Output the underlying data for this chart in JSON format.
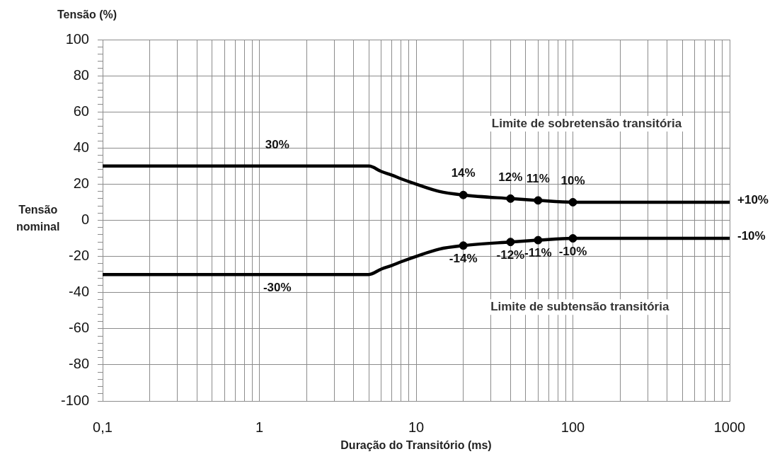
{
  "chart_data": {
    "type": "line",
    "xlabel": "Duração do Transitório (ms)",
    "ylabel": "Tensão (%)",
    "log": "x",
    "grid": true,
    "xlim": [
      0.1,
      1000
    ],
    "xticks": [
      {
        "value": 0.1,
        "label": "0,1"
      },
      {
        "value": 0.2,
        "label": null
      },
      {
        "value": 0.3,
        "label": null
      },
      {
        "value": 0.4,
        "label": null
      },
      {
        "value": 0.5,
        "label": null
      },
      {
        "value": 0.6,
        "label": null
      },
      {
        "value": 0.7,
        "label": null
      },
      {
        "value": 0.8,
        "label": null
      },
      {
        "value": 0.9,
        "label": null
      },
      1,
      {
        "value": 2,
        "label": null
      },
      {
        "value": 3,
        "label": null
      },
      {
        "value": 4,
        "label": null
      },
      {
        "value": 5,
        "label": null
      },
      {
        "value": 6,
        "label": null
      },
      {
        "value": 7,
        "label": null
      },
      {
        "value": 8,
        "label": null
      },
      {
        "value": 9,
        "label": null
      },
      10,
      {
        "value": 20,
        "label": null
      },
      {
        "value": 30,
        "label": null
      },
      {
        "value": 40,
        "label": null
      },
      {
        "value": 50,
        "label": null
      },
      {
        "value": 60,
        "label": null
      },
      {
        "value": 70,
        "label": null
      },
      {
        "value": 80,
        "label": null
      },
      {
        "value": 90,
        "label": null
      },
      100,
      {
        "value": 200,
        "label": null
      },
      {
        "value": 300,
        "label": null
      },
      {
        "value": 400,
        "label": null
      },
      {
        "value": 500,
        "label": null
      },
      {
        "value": 600,
        "label": null
      },
      {
        "value": 700,
        "label": null
      },
      {
        "value": 800,
        "label": null
      },
      {
        "value": 900,
        "label": null
      },
      1000
    ],
    "ylim": [
      -100,
      100
    ],
    "yticks": [
      -100,
      {
        "value": -96,
        "label": null
      },
      {
        "value": -92,
        "label": null
      },
      {
        "value": -88,
        "label": null
      },
      {
        "value": -84,
        "label": null
      },
      -80,
      {
        "value": -76,
        "label": null
      },
      {
        "value": -72,
        "label": null
      },
      {
        "value": -68,
        "label": null
      },
      {
        "value": -64,
        "label": null
      },
      -60,
      {
        "value": -56,
        "label": null
      },
      {
        "value": -52,
        "label": null
      },
      {
        "value": -48,
        "label": null
      },
      {
        "value": -44,
        "label": null
      },
      -40,
      {
        "value": -36,
        "label": null
      },
      {
        "value": -32,
        "label": null
      },
      {
        "value": -28,
        "label": null
      },
      {
        "value": -24,
        "label": null
      },
      -20,
      {
        "value": -16,
        "label": null
      },
      {
        "value": -12,
        "label": null
      },
      {
        "value": -8,
        "label": null
      },
      {
        "value": -4,
        "label": null
      },
      0,
      {
        "value": 4,
        "label": null
      },
      {
        "value": 8,
        "label": null
      },
      {
        "value": 12,
        "label": null
      },
      {
        "value": 16,
        "label": null
      },
      20,
      {
        "value": 24,
        "label": null
      },
      {
        "value": 28,
        "label": null
      },
      {
        "value": 32,
        "label": null
      },
      {
        "value": 36,
        "label": null
      },
      40,
      {
        "value": 44,
        "label": null
      },
      {
        "value": 48,
        "label": null
      },
      {
        "value": 52,
        "label": null
      },
      {
        "value": 56,
        "label": null
      },
      60,
      {
        "value": 64,
        "label": null
      },
      {
        "value": 68,
        "label": null
      },
      {
        "value": 72,
        "label": null
      },
      {
        "value": 76,
        "label": null
      },
      80,
      {
        "value": 84,
        "label": null
      },
      {
        "value": 88,
        "label": null
      },
      {
        "value": 92,
        "label": null
      },
      {
        "value": 96,
        "label": null
      },
      100
    ],
    "series": [
      {
        "type": "line",
        "color": "#000000",
        "x": [
          0.1,
          1.3,
          5,
          6,
          7,
          8,
          10,
          14,
          20,
          40,
          60,
          100,
          1000
        ],
        "values": [
          30,
          30,
          30,
          27,
          25,
          23,
          20,
          16,
          14,
          12,
          11,
          10,
          10
        ],
        "value_labels": [
          null,
          "30%",
          null,
          null,
          null,
          null,
          null,
          null,
          null,
          null,
          null,
          null,
          "+10%"
        ]
      },
      {
        "type": "line",
        "color": "#000000",
        "x": [
          0.1,
          1.3,
          5,
          6,
          7,
          8,
          10,
          14,
          20,
          40,
          60,
          100,
          1000
        ],
        "values": [
          -30,
          -30,
          -30,
          -27,
          -25,
          -23,
          -20,
          -16,
          -14,
          -12,
          -11,
          -10,
          -10
        ],
        "value_labels": [
          null,
          "-30%",
          null,
          null,
          null,
          null,
          null,
          null,
          null,
          null,
          null,
          null,
          "-10%"
        ]
      },
      {
        "type": "scatter",
        "marker": "circle",
        "color": "#000000",
        "x": [
          20,
          40,
          60,
          100
        ],
        "values": [
          14,
          12,
          11,
          10
        ],
        "value_labels": [
          "14%",
          "12%",
          "11%",
          "10%"
        ]
      },
      {
        "type": "scatter",
        "marker": "circle",
        "color": "#000000",
        "x": [
          20,
          40,
          60,
          100
        ],
        "values": [
          -14,
          -12,
          -11,
          -10
        ],
        "value_labels": [
          "-14%",
          "-12%",
          "-11%",
          "-10%"
        ]
      }
    ],
    "annotations": [
      "Limite de sobretensão transitória",
      "Tensão nominal",
      "Limite de subtensão transitória"
    ]
  }
}
